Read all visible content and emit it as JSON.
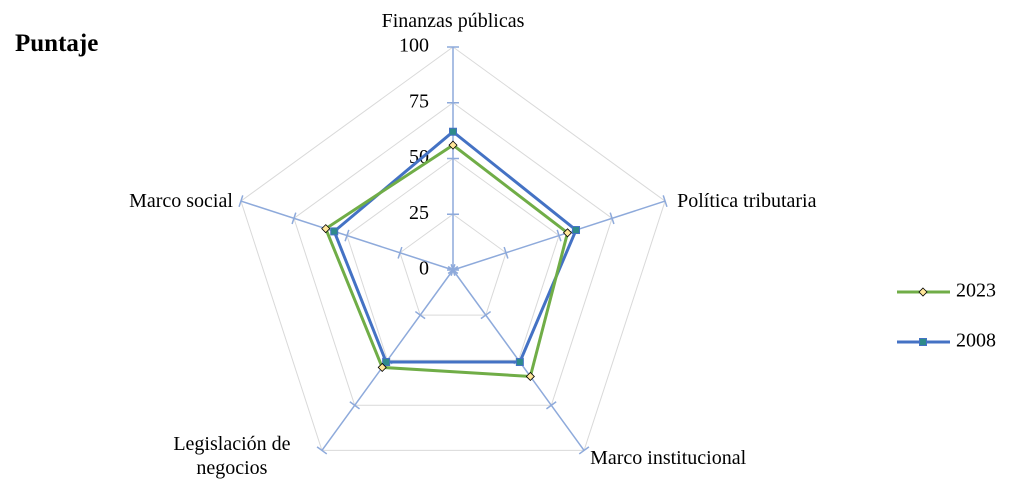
{
  "chart_data": {
    "type": "radar",
    "title": "Puntaje",
    "categories": [
      "Finanzas públicas",
      "Política tributaria",
      "Marco institucional",
      "Legislación de negocios",
      "Marco social"
    ],
    "series": [
      {
        "name": "2023",
        "color": "#70ad47",
        "marker": "diamond",
        "values": [
          56,
          54,
          59,
          54,
          60
        ]
      },
      {
        "name": "2008",
        "color": "#4472c4",
        "marker": "square",
        "values": [
          62,
          58,
          51,
          51,
          56
        ]
      }
    ],
    "ylim": [
      0,
      100
    ],
    "yticks": [
      0,
      25,
      50,
      75,
      100
    ],
    "grid": true,
    "legend": "right"
  }
}
